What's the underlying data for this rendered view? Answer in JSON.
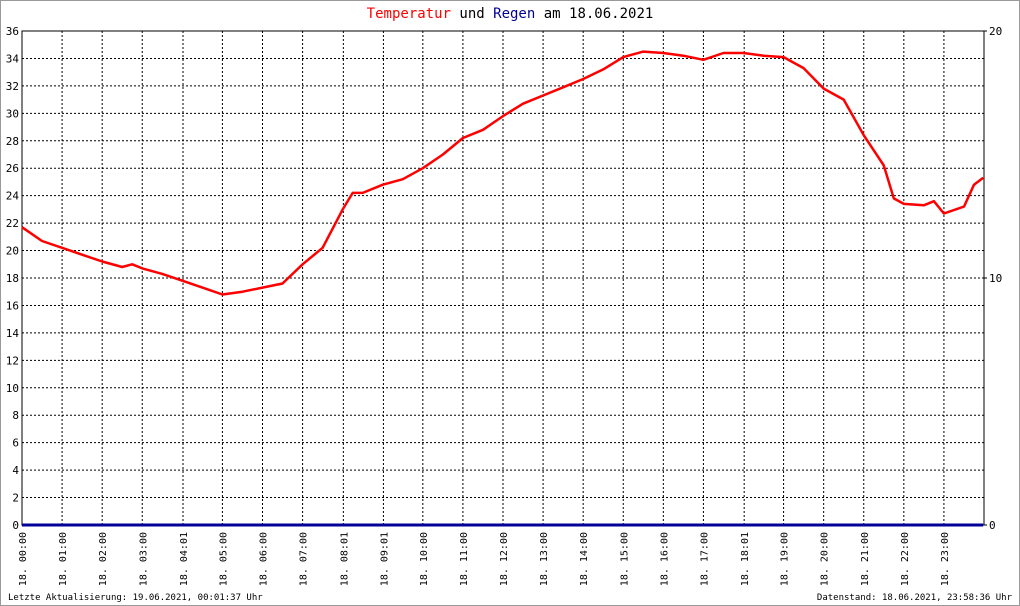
{
  "chart_data": {
    "type": "line",
    "title_parts": [
      "und",
      "am 18.06.2021"
    ],
    "footer_left": "Letzte Aktualisierung: 19.06.2021, 00:01:37 Uhr",
    "footer_right": "Datenstand: 18.06.2021, 23:58:36 Uhr",
    "x": [
      0,
      0.5,
      1,
      1.5,
      2,
      2.5,
      2.75,
      3,
      3.5,
      4,
      4.5,
      5,
      5.5,
      6,
      6.5,
      7,
      7.5,
      8,
      8.25,
      8.5,
      9,
      9.5,
      10,
      10.5,
      11,
      11.5,
      12,
      12.5,
      13,
      13.5,
      14,
      14.5,
      15,
      15.5,
      16,
      16.5,
      17,
      17.5,
      18,
      18.5,
      19,
      19.5,
      20,
      20.5,
      21,
      21.5,
      21.75,
      22,
      22.5,
      22.75,
      23,
      23.5,
      23.75,
      23.98
    ],
    "series": [
      {
        "name": "Temperatur",
        "color": "#ff0000",
        "axis": "y",
        "values": [
          21.7,
          20.7,
          20.2,
          19.7,
          19.2,
          18.8,
          19.0,
          18.7,
          18.3,
          17.8,
          17.3,
          16.8,
          17.0,
          17.3,
          17.6,
          19.0,
          20.2,
          23.0,
          24.2,
          24.2,
          24.8,
          25.2,
          26.0,
          27.0,
          28.2,
          28.8,
          29.8,
          30.7,
          31.3,
          31.9,
          32.5,
          33.2,
          34.1,
          34.5,
          34.4,
          34.2,
          33.9,
          34.4,
          34.4,
          34.2,
          34.1,
          33.3,
          31.8,
          31.0,
          28.4,
          26.2,
          23.8,
          23.4,
          23.3,
          23.6,
          22.7,
          23.2,
          24.8,
          25.3
        ]
      },
      {
        "name": "Regen",
        "color": "#000099",
        "axis": "y2",
        "values": [
          0,
          0,
          0,
          0,
          0,
          0,
          0,
          0,
          0,
          0,
          0,
          0,
          0,
          0,
          0,
          0,
          0,
          0,
          0,
          0,
          0,
          0,
          0,
          0,
          0,
          0,
          0,
          0,
          0,
          0,
          0,
          0,
          0,
          0,
          0,
          0,
          0,
          0,
          0,
          0,
          0,
          0,
          0,
          0,
          0,
          0,
          0,
          0,
          0,
          0,
          0,
          0,
          0,
          0
        ]
      }
    ],
    "xlim": [
      0,
      24
    ],
    "xticks": [
      {
        "value": 0,
        "label": "18. 00:00"
      },
      {
        "value": 1,
        "label": "18. 01:00"
      },
      {
        "value": 2,
        "label": "18. 02:00"
      },
      {
        "value": 3,
        "label": "18. 03:00"
      },
      {
        "value": 4.017,
        "label": "18. 04:01"
      },
      {
        "value": 5,
        "label": "18. 05:00"
      },
      {
        "value": 6,
        "label": "18. 06:00"
      },
      {
        "value": 7,
        "label": "18. 07:00"
      },
      {
        "value": 8.017,
        "label": "18. 08:01"
      },
      {
        "value": 9.017,
        "label": "18. 09:01"
      },
      {
        "value": 10,
        "label": "18. 10:00"
      },
      {
        "value": 11,
        "label": "18. 11:00"
      },
      {
        "value": 12,
        "label": "18. 12:00"
      },
      {
        "value": 13,
        "label": "18. 13:00"
      },
      {
        "value": 14,
        "label": "18. 14:00"
      },
      {
        "value": 15,
        "label": "18. 15:00"
      },
      {
        "value": 16,
        "label": "18. 16:00"
      },
      {
        "value": 17,
        "label": "18. 17:00"
      },
      {
        "value": 18.017,
        "label": "18. 18:01"
      },
      {
        "value": 19,
        "label": "18. 19:00"
      },
      {
        "value": 20,
        "label": "18. 20:00"
      },
      {
        "value": 21,
        "label": "18. 21:00"
      },
      {
        "value": 22,
        "label": "18. 22:00"
      },
      {
        "value": 23,
        "label": "18. 23:00"
      }
    ],
    "ylim": [
      0,
      36
    ],
    "yticks": [
      0,
      2,
      4,
      6,
      8,
      10,
      12,
      14,
      16,
      18,
      20,
      22,
      24,
      26,
      28,
      30,
      32,
      34,
      36
    ],
    "y2lim": [
      0,
      20
    ],
    "y2ticks": [
      0,
      10,
      20
    ],
    "grid": true
  }
}
